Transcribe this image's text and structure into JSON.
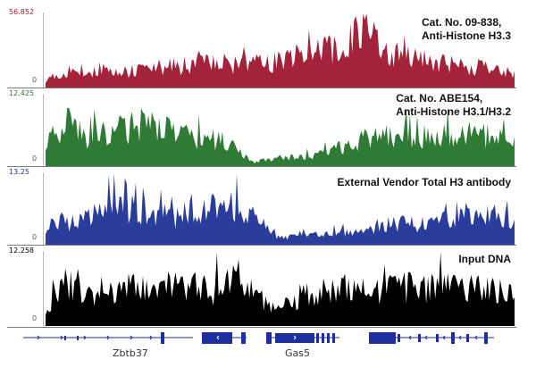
{
  "tracks": [
    {
      "id": "h33",
      "scale_max": "56.852",
      "scale_min": "0",
      "label_line1": "Cat. No. 09-838,",
      "label_line2": "Anti-Histone H3.3",
      "color": "#a3233a",
      "scale_color": "#b01c3a"
    },
    {
      "id": "h31",
      "scale_max": "12.425",
      "scale_min": "0",
      "label_line1": "Cat. No. ABE154,",
      "label_line2": "Anti-Histone H3.1/H3.2",
      "color": "#2f7a35",
      "scale_color": "#2e7d32"
    },
    {
      "id": "totalh3",
      "scale_max": "13.25",
      "scale_min": "0",
      "label_line1": "External Vendor Total H3 antibody",
      "label_line2": "",
      "color": "#2b3d9a",
      "scale_color": "#283593"
    },
    {
      "id": "input",
      "scale_max": "12.258",
      "scale_min": "0",
      "label_line1": "Input DNA",
      "label_line2": "",
      "color": "#000000",
      "scale_color": "#000000"
    }
  ],
  "genes": [
    {
      "name": "Zbtb37"
    },
    {
      "name": "Gas5"
    }
  ],
  "gene_color": "#1f2e9e"
}
